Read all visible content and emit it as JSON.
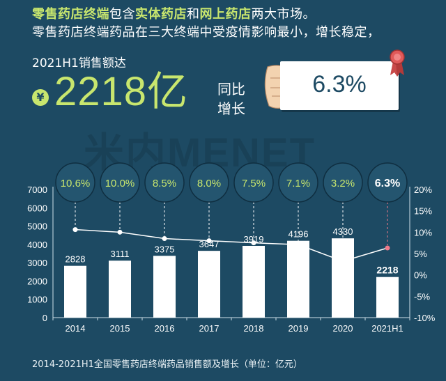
{
  "header": {
    "line1_hl1": "零售药店终端",
    "line1_t1": "包含",
    "line1_hl2": "实体药店",
    "line1_t2": "和",
    "line1_hl3": "网上药店",
    "line1_t3": "两大市场。",
    "line2": "零售药店终端药品在三大终端中受疫情影响最小，增长稳定，",
    "sales_label": "2021H1销售额达",
    "yen_symbol": "¥",
    "big_number": "2218亿",
    "yoy_label_1": "同比",
    "yoy_label_2": "增长",
    "yoy_value": "6.3%"
  },
  "watermark": "米内MENET",
  "colors": {
    "background": "#1d4a63",
    "accent": "#c8e66e",
    "bar": "#ffffff",
    "line": "#ffffff",
    "highlight_point": "#f07a8a"
  },
  "chart_data": {
    "type": "bar",
    "categories": [
      "2014",
      "2015",
      "2016",
      "2017",
      "2018",
      "2019",
      "2020",
      "2021H1"
    ],
    "series": [
      {
        "values": [
          2828,
          3111,
          3375,
          3647,
          3919,
          4196,
          4330,
          2218
        ]
      },
      {
        "values": [
          10.6,
          10.0,
          8.5,
          8.0,
          7.5,
          7.1,
          3.2,
          6.3
        ]
      }
    ],
    "bar_labels": [
      "2828",
      "3111",
      "3375",
      "3647",
      "3919",
      "4196",
      "4330",
      "2218"
    ],
    "growth_labels": [
      "10.6%",
      "10.0%",
      "8.5%",
      "8.0%",
      "7.5%",
      "7.1%",
      "3.2%",
      "6.3%"
    ],
    "y_left_ticks": [
      "0",
      "1000",
      "2000",
      "3000",
      "4000",
      "5000",
      "6000",
      "7000"
    ],
    "y_right_ticks": [
      "-10%",
      "-5%",
      "0%",
      "5%",
      "10%",
      "15%",
      "20%"
    ],
    "ylim_left": [
      0,
      7000
    ],
    "ylim_right": [
      -10,
      20
    ],
    "grid": false
  },
  "footnote": "2014-2021H1全国零售药店终端药品销售额及增长（单位：亿元）"
}
